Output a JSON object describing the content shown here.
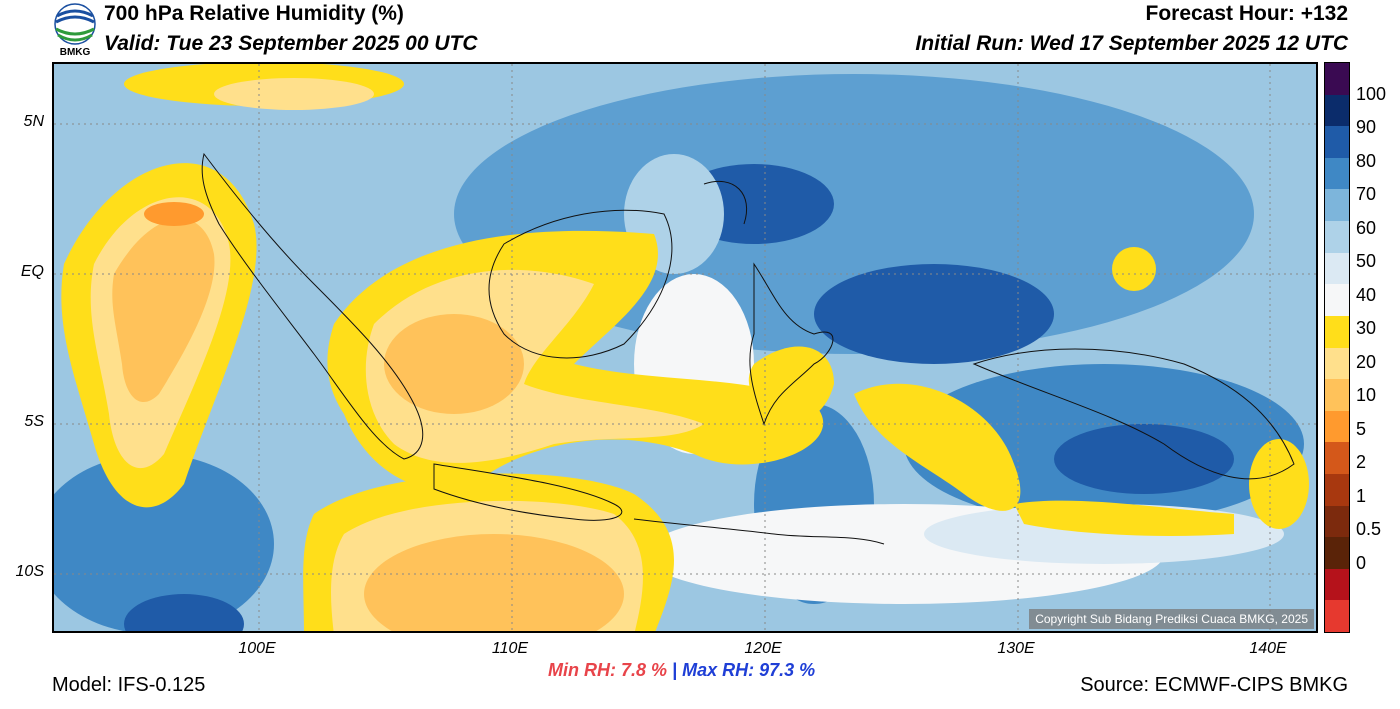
{
  "header": {
    "logo_text": "BMKG",
    "title": "700 hPa Relative Humidity (%)",
    "valid": "Valid: Tue 23 September 2025 00 UTC",
    "forecast_hour": "Forecast Hour: +132",
    "initial_run": "Initial Run: Wed 17 September 2025 12 UTC"
  },
  "map": {
    "lat_labels": [
      "5N",
      "EQ",
      "5S",
      "10S"
    ],
    "lon_labels": [
      "100E",
      "110E",
      "120E",
      "130E",
      "140E"
    ],
    "copyright": "Copyright Sub Bidang Prediksi Cuaca BMKG, 2025",
    "extent": {
      "lon_min": 92,
      "lon_max": 142,
      "lat_min": -12,
      "lat_max": 7
    }
  },
  "colorbar": {
    "labels": [
      "100",
      "90",
      "80",
      "70",
      "60",
      "50",
      "40",
      "30",
      "20",
      "10",
      "5",
      "2",
      "1",
      "0.5",
      "0"
    ],
    "colors": [
      "#3a0a52",
      "#0b2c6b",
      "#1f5ba8",
      "#3f88c5",
      "#7db5db",
      "#aed2e8",
      "#dbe9f3",
      "#f6f7f8",
      "#ffde1a",
      "#ffe08c",
      "#ffc25a",
      "#ff9a2e",
      "#d4581a",
      "#a8380f",
      "#7c2a0d",
      "#5a2308",
      "#b5121b",
      "#e6392f"
    ]
  },
  "footer": {
    "min_rh_label": "Min RH:",
    "min_rh_value": "7.8 %",
    "separator": "|",
    "max_rh_label": "Max RH:",
    "max_rh_value": "97.3 %",
    "model": "Model: IFS-0.125",
    "source": "Source: ECMWF-CIPS BMKG"
  }
}
